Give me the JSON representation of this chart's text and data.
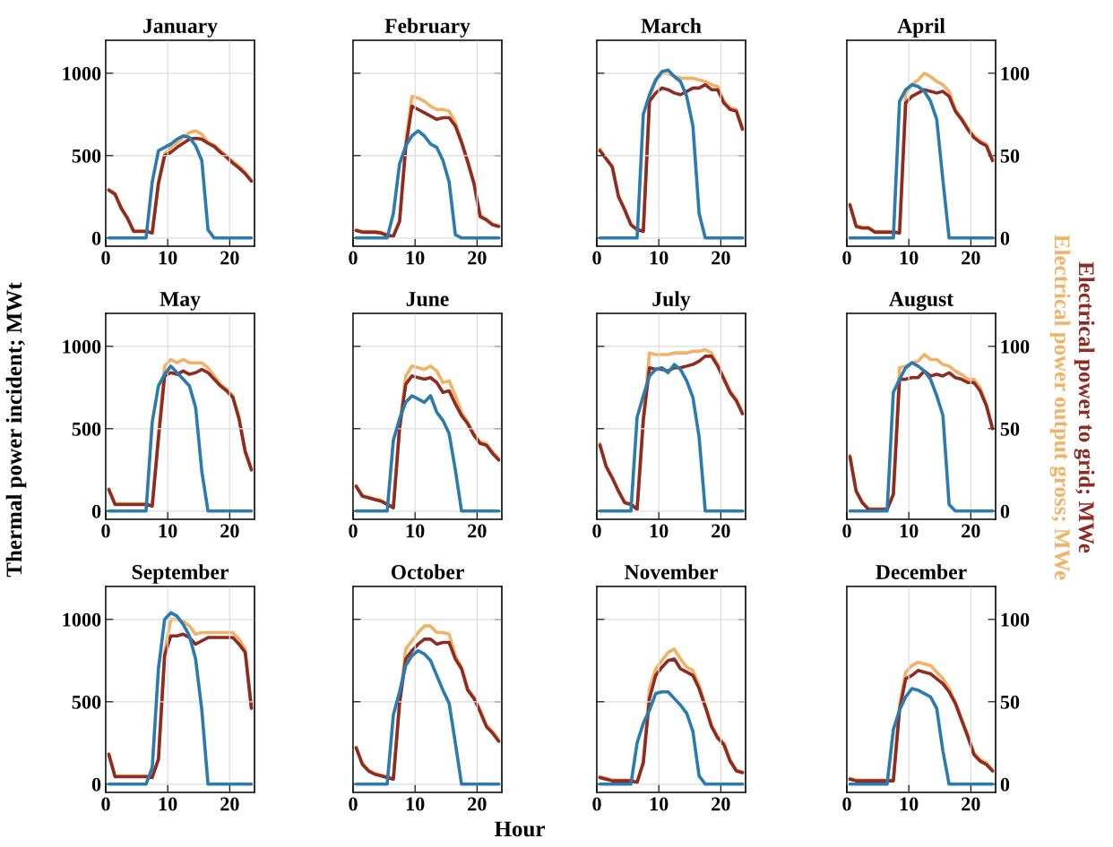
{
  "chart_data": [
    {
      "type": "line",
      "title": "January",
      "x": [
        0.5,
        1.5,
        2.5,
        3.5,
        4.5,
        5.5,
        6.5,
        7.5,
        8.5,
        9.5,
        10.5,
        11.5,
        12.5,
        13.5,
        14.5,
        15.5,
        16.5,
        17.5,
        18.5,
        19.5,
        20.5,
        21.5,
        22.5,
        23.5
      ],
      "xlim": [
        0,
        24
      ],
      "xticks": [
        0,
        10,
        20
      ],
      "ylim": [
        -50,
        1200
      ],
      "yticks": [
        0,
        500,
        1000
      ],
      "y2lim": [
        -5,
        120
      ],
      "grid": true,
      "series": [
        {
          "color": "#f2b266",
          "axis": "y2",
          "values": [
            29.5,
            27,
            18.5,
            12.5,
            4.5,
            4.5,
            4.5,
            3.5,
            34,
            51,
            55,
            58,
            61,
            64,
            65,
            63,
            58,
            56.5,
            53,
            50,
            46.5,
            43.5,
            40,
            35
          ]
        },
        {
          "color": "#8e2b22",
          "axis": "y2",
          "values": [
            29,
            26.5,
            18,
            12,
            4,
            4,
            4,
            3,
            33,
            50,
            52,
            55,
            57.5,
            60,
            60.5,
            60,
            57.5,
            55.5,
            52,
            49,
            45.5,
            42.5,
            39,
            34.5
          ]
        },
        {
          "color": "#2b7bb0",
          "values": [
            0,
            0,
            0,
            0,
            0,
            0,
            0,
            340,
            530,
            550,
            570,
            600,
            620,
            610,
            560,
            470,
            50,
            0,
            0,
            0,
            0,
            0,
            0,
            0
          ]
        }
      ]
    },
    {
      "type": "line",
      "title": "February",
      "x": [
        0.5,
        1.5,
        2.5,
        3.5,
        4.5,
        5.5,
        6.5,
        7.5,
        8.5,
        9.5,
        10.5,
        11.5,
        12.5,
        13.5,
        14.5,
        15.5,
        16.5,
        17.5,
        18.5,
        19.5,
        20.5,
        21.5,
        22.5,
        23.5
      ],
      "xlim": [
        0,
        24
      ],
      "xticks": [
        0,
        10,
        20
      ],
      "ylim": [
        -50,
        1200
      ],
      "yticks": [
        0,
        500,
        1000
      ],
      "y2lim": [
        -5,
        120
      ],
      "y2ticks": [
        0,
        50,
        100
      ],
      "grid": true,
      "tick_labels": "x",
      "series": [
        {
          "color": "#f2b266",
          "axis": "y2",
          "values": [
            5,
            4,
            4,
            4,
            3.5,
            2,
            1.5,
            10.5,
            58,
            86,
            85,
            83,
            80,
            78,
            78,
            77,
            70,
            59,
            47,
            34,
            14,
            11.5,
            8.5,
            7.5
          ]
        },
        {
          "color": "#8e2b22",
          "axis": "y2",
          "values": [
            4.5,
            3.5,
            3.5,
            3.5,
            3,
            1.5,
            1,
            10,
            55,
            80,
            78,
            76,
            74,
            72,
            73,
            73,
            68,
            58,
            46,
            33,
            13,
            11,
            8,
            7
          ]
        },
        {
          "color": "#2b7bb0",
          "values": [
            0,
            0,
            0,
            0,
            0,
            0,
            150,
            450,
            560,
            620,
            650,
            620,
            570,
            550,
            470,
            340,
            20,
            0,
            0,
            0,
            0,
            0,
            0,
            0
          ]
        }
      ]
    },
    {
      "type": "line",
      "title": "March",
      "x": [
        0.5,
        1.5,
        2.5,
        3.5,
        4.5,
        5.5,
        6.5,
        7.5,
        8.5,
        9.5,
        10.5,
        11.5,
        12.5,
        13.5,
        14.5,
        15.5,
        16.5,
        17.5,
        18.5,
        19.5,
        20.5,
        21.5,
        22.5,
        23.5
      ],
      "xlim": [
        0,
        24
      ],
      "xticks": [
        0,
        10,
        20
      ],
      "ylim": [
        -50,
        1200
      ],
      "yticks": [
        0,
        500,
        1000
      ],
      "y2lim": [
        -5,
        120
      ],
      "y2ticks": [
        0,
        50,
        100
      ],
      "grid": true,
      "tick_labels": "x",
      "series": [
        {
          "color": "#f2b266",
          "axis": "y2",
          "values": [
            54,
            48.5,
            43.5,
            25.5,
            17.5,
            8.5,
            5.5,
            4.5,
            86,
            95,
            100,
            100,
            98,
            97,
            97,
            97,
            96,
            95,
            93,
            92,
            83,
            79,
            78,
            67
          ]
        },
        {
          "color": "#8e2b22",
          "axis": "y2",
          "values": [
            53,
            48,
            43,
            25,
            17,
            8,
            5,
            4,
            83,
            88,
            91,
            90,
            88,
            87,
            89,
            91,
            91,
            93,
            90,
            90,
            82,
            78,
            77,
            66
          ]
        },
        {
          "color": "#2b7bb0",
          "values": [
            0,
            0,
            0,
            0,
            0,
            0,
            0,
            750,
            870,
            960,
            1010,
            1020,
            980,
            950,
            860,
            680,
            150,
            0,
            0,
            0,
            0,
            0,
            0,
            0
          ]
        }
      ]
    },
    {
      "type": "line",
      "title": "April",
      "x": [
        0.5,
        1.5,
        2.5,
        3.5,
        4.5,
        5.5,
        6.5,
        7.5,
        8.5,
        9.5,
        10.5,
        11.5,
        12.5,
        13.5,
        14.5,
        15.5,
        16.5,
        17.5,
        18.5,
        19.5,
        20.5,
        21.5,
        22.5,
        23.5
      ],
      "xlim": [
        0,
        24
      ],
      "xticks": [
        0,
        10,
        20
      ],
      "ylim": [
        -50,
        1200
      ],
      "y2lim": [
        -5,
        120
      ],
      "y2ticks": [
        0,
        50,
        100
      ],
      "grid": true,
      "series": [
        {
          "color": "#f2b266",
          "axis": "y2",
          "values": [
            20.5,
            7.5,
            6.5,
            6.5,
            4,
            4,
            4,
            4,
            3.5,
            88,
            93,
            96,
            100,
            98,
            95,
            93,
            89,
            78,
            73,
            67,
            62,
            59,
            57,
            48
          ]
        },
        {
          "color": "#8e2b22",
          "axis": "y2",
          "values": [
            20,
            7,
            6,
            6,
            3.5,
            3.5,
            3.5,
            3.5,
            3,
            82,
            86,
            88,
            90,
            89,
            88,
            89,
            86,
            77,
            72,
            66,
            61,
            58,
            56,
            47
          ]
        },
        {
          "color": "#2b7bb0",
          "values": [
            0,
            0,
            0,
            0,
            0,
            0,
            0,
            0,
            830,
            900,
            930,
            920,
            890,
            830,
            720,
            350,
            0,
            0,
            0,
            0,
            0,
            0,
            0,
            0
          ]
        }
      ]
    },
    {
      "type": "line",
      "title": "May",
      "ylabel": "Thermal power incident; MWt",
      "x": [
        0.5,
        1.5,
        2.5,
        3.5,
        4.5,
        5.5,
        6.5,
        7.5,
        8.5,
        9.5,
        10.5,
        11.5,
        12.5,
        13.5,
        14.5,
        15.5,
        16.5,
        17.5,
        18.5,
        19.5,
        20.5,
        21.5,
        22.5,
        23.5
      ],
      "xlim": [
        0,
        24
      ],
      "xticks": [
        0,
        10,
        20
      ],
      "ylim": [
        -50,
        1200
      ],
      "yticks": [
        0,
        500,
        1000
      ],
      "y2lim": [
        -5,
        120
      ],
      "grid": true,
      "series": [
        {
          "color": "#f2b266",
          "axis": "y2",
          "values": [
            13.5,
            4.5,
            4.5,
            4.5,
            4.5,
            4.5,
            4.5,
            3.5,
            46,
            88,
            92,
            90,
            92,
            90,
            90,
            90,
            87,
            82,
            77,
            74,
            70,
            57,
            37,
            26
          ]
        },
        {
          "color": "#8e2b22",
          "axis": "y2",
          "values": [
            13,
            4,
            4,
            4,
            4,
            4,
            4,
            3,
            44,
            82,
            84,
            83,
            85,
            83,
            84,
            86,
            84,
            80,
            76,
            73,
            69,
            56,
            36,
            25
          ]
        },
        {
          "color": "#2b7bb0",
          "values": [
            0,
            0,
            0,
            0,
            0,
            0,
            0,
            540,
            760,
            830,
            880,
            840,
            800,
            760,
            630,
            240,
            0,
            0,
            0,
            0,
            0,
            0,
            0,
            0
          ]
        }
      ]
    },
    {
      "type": "line",
      "title": "June",
      "x": [
        0.5,
        1.5,
        2.5,
        3.5,
        4.5,
        5.5,
        6.5,
        7.5,
        8.5,
        9.5,
        10.5,
        11.5,
        12.5,
        13.5,
        14.5,
        15.5,
        16.5,
        17.5,
        18.5,
        19.5,
        20.5,
        21.5,
        22.5,
        23.5
      ],
      "xlim": [
        0,
        24
      ],
      "xticks": [
        0,
        10,
        20
      ],
      "ylim": [
        -50,
        1200
      ],
      "yticks": [
        0,
        500,
        1000
      ],
      "y2lim": [
        -5,
        120
      ],
      "y2ticks": [
        0,
        50,
        100
      ],
      "grid": true,
      "tick_labels": "x",
      "series": [
        {
          "color": "#f2b266",
          "axis": "y2",
          "values": [
            15.5,
            9.5,
            8.5,
            7.5,
            6.5,
            4.5,
            2.5,
            52,
            82,
            88,
            87,
            86,
            88,
            85,
            78,
            79,
            70,
            60,
            54,
            47,
            42,
            41,
            36,
            32
          ]
        },
        {
          "color": "#8e2b22",
          "axis": "y2",
          "values": [
            15,
            9,
            8,
            7,
            6,
            4,
            2,
            50,
            77,
            82,
            81,
            80,
            81,
            78,
            72,
            73,
            65,
            58,
            53,
            46,
            41,
            40,
            35,
            31
          ]
        },
        {
          "color": "#2b7bb0",
          "values": [
            0,
            0,
            0,
            0,
            0,
            0,
            430,
            560,
            660,
            700,
            680,
            660,
            700,
            600,
            550,
            470,
            250,
            0,
            0,
            0,
            0,
            0,
            0,
            0
          ]
        }
      ]
    },
    {
      "type": "line",
      "title": "July",
      "x": [
        0.5,
        1.5,
        2.5,
        3.5,
        4.5,
        5.5,
        6.5,
        7.5,
        8.5,
        9.5,
        10.5,
        11.5,
        12.5,
        13.5,
        14.5,
        15.5,
        16.5,
        17.5,
        18.5,
        19.5,
        20.5,
        21.5,
        22.5,
        23.5
      ],
      "xlim": [
        0,
        24
      ],
      "xticks": [
        0,
        10,
        20
      ],
      "ylim": [
        -50,
        1200
      ],
      "yticks": [
        0,
        500,
        1000
      ],
      "y2lim": [
        -5,
        120
      ],
      "y2ticks": [
        0,
        50,
        100
      ],
      "grid": true,
      "tick_labels": "x",
      "series": [
        {
          "color": "#f2b266",
          "axis": "y2",
          "values": [
            41,
            27.5,
            20.5,
            12.5,
            5.5,
            4.5,
            1.5,
            57,
            96,
            95,
            95,
            95,
            96,
            96,
            96,
            97,
            97,
            98,
            96,
            89,
            81,
            73,
            68,
            60
          ]
        },
        {
          "color": "#8e2b22",
          "axis": "y2",
          "values": [
            40,
            27,
            20,
            12,
            5,
            4,
            1,
            55,
            87,
            86,
            86,
            85,
            87,
            87,
            88,
            89,
            91,
            94,
            94,
            88,
            80,
            72,
            67,
            59
          ]
        },
        {
          "color": "#2b7bb0",
          "values": [
            0,
            0,
            0,
            0,
            0,
            0,
            570,
            700,
            820,
            860,
            870,
            840,
            890,
            860,
            790,
            690,
            450,
            0,
            0,
            0,
            0,
            0,
            0,
            0
          ]
        }
      ]
    },
    {
      "type": "line",
      "title": "August",
      "legend": "right",
      "x": [
        0.5,
        1.5,
        2.5,
        3.5,
        4.5,
        5.5,
        6.5,
        7.5,
        8.5,
        9.5,
        10.5,
        11.5,
        12.5,
        13.5,
        14.5,
        15.5,
        16.5,
        17.5,
        18.5,
        19.5,
        20.5,
        21.5,
        22.5,
        23.5
      ],
      "xlim": [
        0,
        24
      ],
      "xticks": [
        0,
        10,
        20
      ],
      "ylim": [
        -50,
        1200
      ],
      "y2lim": [
        -5,
        120
      ],
      "y2ticks": [
        0,
        50,
        100
      ],
      "grid": true,
      "series": [
        {
          "name": "Electrical power output gross; MWe",
          "color": "#f2b266",
          "axis": "y2",
          "values": [
            34,
            12.5,
            5.5,
            1.5,
            1.5,
            1.5,
            1.5,
            10.5,
            87,
            88,
            90,
            91,
            95,
            92,
            92,
            89,
            88,
            85,
            83,
            80,
            80,
            75,
            65,
            51
          ]
        },
        {
          "name": "Electrical power to grid; MWe",
          "color": "#8e2b22",
          "axis": "y2",
          "values": [
            33,
            12,
            5,
            1,
            1,
            1,
            1,
            10,
            80,
            80,
            81,
            81,
            85,
            82,
            83,
            82,
            84,
            81,
            80,
            78,
            78,
            73,
            64,
            50
          ]
        },
        {
          "color": "#2b7bb0",
          "values": [
            0,
            0,
            0,
            0,
            0,
            0,
            0,
            720,
            800,
            870,
            900,
            880,
            850,
            800,
            700,
            580,
            40,
            0,
            0,
            0,
            0,
            0,
            0,
            0
          ]
        }
      ]
    },
    {
      "type": "line",
      "title": "September",
      "x": [
        0.5,
        1.5,
        2.5,
        3.5,
        4.5,
        5.5,
        6.5,
        7.5,
        8.5,
        9.5,
        10.5,
        11.5,
        12.5,
        13.5,
        14.5,
        15.5,
        16.5,
        17.5,
        18.5,
        19.5,
        20.5,
        21.5,
        22.5,
        23.5
      ],
      "xlim": [
        0,
        24
      ],
      "xticks": [
        0,
        10,
        20
      ],
      "ylim": [
        -50,
        1200
      ],
      "yticks": [
        0,
        500,
        1000
      ],
      "y2lim": [
        -5,
        120
      ],
      "grid": true,
      "series": [
        {
          "color": "#f2b266",
          "axis": "y2",
          "values": [
            18.5,
            5,
            5,
            5,
            5,
            5,
            5,
            4.5,
            15.5,
            80,
            100,
            100,
            99,
            96,
            91,
            92,
            92,
            92,
            92,
            92,
            92,
            88,
            82,
            46.5
          ]
        },
        {
          "color": "#8e2b22",
          "axis": "y2",
          "values": [
            18,
            4.5,
            4.5,
            4.5,
            4.5,
            4.5,
            4.5,
            4,
            15,
            78,
            90,
            90,
            91,
            89,
            85,
            87,
            89,
            89,
            89,
            89,
            89,
            85,
            80,
            46
          ]
        },
        {
          "color": "#2b7bb0",
          "values": [
            0,
            0,
            0,
            0,
            0,
            0,
            0,
            100,
            700,
            1000,
            1040,
            1020,
            970,
            900,
            760,
            450,
            0,
            0,
            0,
            0,
            0,
            0,
            0,
            0
          ]
        }
      ]
    },
    {
      "type": "line",
      "title": "October",
      "xlabel": "Hour",
      "x": [
        0.5,
        1.5,
        2.5,
        3.5,
        4.5,
        5.5,
        6.5,
        7.5,
        8.5,
        9.5,
        10.5,
        11.5,
        12.5,
        13.5,
        14.5,
        15.5,
        16.5,
        17.5,
        18.5,
        19.5,
        20.5,
        21.5,
        22.5,
        23.5
      ],
      "xlim": [
        0,
        24
      ],
      "xticks": [
        0,
        10,
        20
      ],
      "ylim": [
        -50,
        1200
      ],
      "yticks": [
        0,
        500,
        1000
      ],
      "y2lim": [
        -5,
        120
      ],
      "y2ticks": [
        0,
        50,
        100
      ],
      "grid": true,
      "tick_labels": "x",
      "series": [
        {
          "color": "#f2b266",
          "axis": "y2",
          "values": [
            22.5,
            12.5,
            8.5,
            6.5,
            5.5,
            4.5,
            3.5,
            50,
            82,
            87,
            92,
            96,
            96,
            92,
            92,
            91,
            78,
            71,
            58,
            53,
            45,
            36,
            32,
            27
          ]
        },
        {
          "color": "#8e2b22",
          "axis": "y2",
          "values": [
            22,
            12,
            8,
            6,
            5,
            4,
            3,
            49,
            76,
            81,
            85,
            88,
            88,
            85,
            86,
            86,
            76,
            70,
            57,
            52,
            44,
            35,
            31,
            26
          ]
        },
        {
          "color": "#2b7bb0",
          "values": [
            0,
            0,
            0,
            0,
            0,
            0,
            420,
            560,
            720,
            780,
            810,
            790,
            750,
            660,
            570,
            490,
            250,
            0,
            0,
            0,
            0,
            0,
            0,
            0
          ]
        }
      ]
    },
    {
      "type": "line",
      "title": "November",
      "x": [
        0.5,
        1.5,
        2.5,
        3.5,
        4.5,
        5.5,
        6.5,
        7.5,
        8.5,
        9.5,
        10.5,
        11.5,
        12.5,
        13.5,
        14.5,
        15.5,
        16.5,
        17.5,
        18.5,
        19.5,
        20.5,
        21.5,
        22.5,
        23.5
      ],
      "xlim": [
        0,
        24
      ],
      "xticks": [
        0,
        10,
        20
      ],
      "ylim": [
        -50,
        1200
      ],
      "yticks": [
        0,
        500,
        1000
      ],
      "y2lim": [
        -5,
        120
      ],
      "y2ticks": [
        0,
        50,
        100
      ],
      "grid": true,
      "tick_labels": "x",
      "series": [
        {
          "color": "#f2b266",
          "axis": "y2",
          "values": [
            4.5,
            3.5,
            2.5,
            2.5,
            2.5,
            2.5,
            1.5,
            13.5,
            58,
            70,
            75,
            80,
            82,
            76,
            71,
            69,
            60,
            48,
            36,
            29,
            25,
            15,
            8.5,
            7.5
          ]
        },
        {
          "color": "#8e2b22",
          "axis": "y2",
          "values": [
            4,
            3,
            2,
            2,
            2,
            2,
            1,
            13,
            52,
            66,
            71,
            75,
            76,
            70,
            68,
            66,
            58,
            47,
            35,
            28,
            24,
            14,
            8,
            7
          ]
        },
        {
          "color": "#2b7bb0",
          "values": [
            0,
            0,
            0,
            0,
            0,
            0,
            250,
            370,
            450,
            550,
            560,
            560,
            520,
            480,
            430,
            320,
            50,
            0,
            0,
            0,
            0,
            0,
            0,
            0
          ]
        }
      ]
    },
    {
      "type": "line",
      "title": "December",
      "x": [
        0.5,
        1.5,
        2.5,
        3.5,
        4.5,
        5.5,
        6.5,
        7.5,
        8.5,
        9.5,
        10.5,
        11.5,
        12.5,
        13.5,
        14.5,
        15.5,
        16.5,
        17.5,
        18.5,
        19.5,
        20.5,
        21.5,
        22.5,
        23.5
      ],
      "xlim": [
        0,
        24
      ],
      "xticks": [
        0,
        10,
        20
      ],
      "ylim": [
        -50,
        1200
      ],
      "y2lim": [
        -5,
        120
      ],
      "y2ticks": [
        0,
        50,
        100
      ],
      "grid": true,
      "series": [
        {
          "color": "#f2b266",
          "axis": "y2",
          "values": [
            3.5,
            2.5,
            2.5,
            2.5,
            2.5,
            2.5,
            2.5,
            2.5,
            48,
            68,
            72,
            74,
            73,
            72,
            68,
            64,
            58,
            50,
            40,
            30,
            19,
            15,
            13,
            8.5
          ]
        },
        {
          "color": "#8e2b22",
          "axis": "y2",
          "values": [
            3,
            2,
            2,
            2,
            2,
            2,
            2,
            2,
            45,
            64,
            66,
            69,
            68,
            67,
            64,
            61,
            56,
            49,
            39,
            29,
            18,
            14,
            12,
            8
          ]
        },
        {
          "color": "#2b7bb0",
          "values": [
            0,
            0,
            0,
            0,
            0,
            0,
            0,
            330,
            450,
            530,
            580,
            570,
            550,
            530,
            460,
            200,
            0,
            0,
            0,
            0,
            0,
            0,
            0,
            0
          ]
        }
      ]
    }
  ]
}
